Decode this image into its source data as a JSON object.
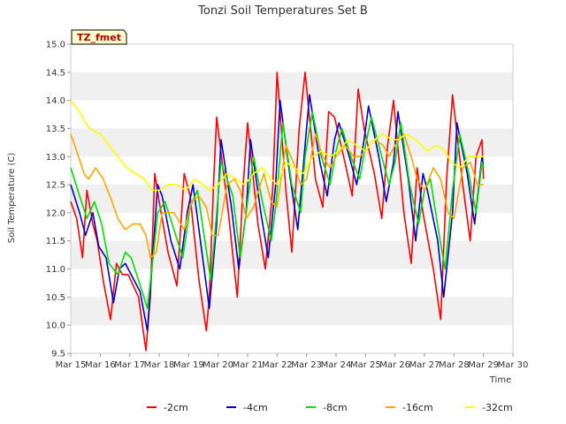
{
  "chart_data": {
    "type": "line",
    "title": "Tonzi Soil Temperatures Set B",
    "xlabel": "Time",
    "ylabel": "Soil Temperature (C)",
    "badge": "TZ_fmet",
    "xlim": [
      15,
      30
    ],
    "ylim": [
      9.5,
      15.0
    ],
    "x_ticks": [
      15,
      16,
      17,
      18,
      19,
      20,
      21,
      22,
      23,
      24,
      25,
      26,
      27,
      28,
      29,
      30
    ],
    "x_tick_labels": [
      "Mar 15",
      "Mar 16",
      "Mar 17",
      "Mar 18",
      "Mar 19",
      "Mar 20",
      "Mar 21",
      "Mar 22",
      "Mar 23",
      "Mar 24",
      "Mar 25",
      "Mar 26",
      "Mar 27",
      "Mar 28",
      "Mar 29",
      "Mar 30"
    ],
    "y_ticks": [
      9.5,
      10.0,
      10.5,
      11.0,
      11.5,
      12.0,
      12.5,
      13.0,
      13.5,
      14.0,
      14.5,
      15.0
    ],
    "y_tick_labels": [
      "9.5",
      "10.0",
      "10.5",
      "11.0",
      "11.5",
      "12.0",
      "12.5",
      "13.0",
      "13.5",
      "14.0",
      "14.5",
      "15.0"
    ],
    "grid": "horizontal bands",
    "legend_position": "bottom",
    "series": [
      {
        "name": "-2cm",
        "color": "#ff0000",
        "x": [
          15.0,
          15.2,
          15.4,
          15.55,
          15.75,
          15.9,
          16.1,
          16.35,
          16.55,
          16.75,
          16.95,
          17.3,
          17.55,
          17.7,
          17.85,
          18.0,
          18.3,
          18.6,
          18.85,
          19.05,
          19.35,
          19.6,
          19.7,
          19.85,
          19.95,
          20.35,
          20.65,
          20.85,
          21.0,
          21.35,
          21.6,
          21.85,
          22.0,
          22.3,
          22.5,
          22.75,
          22.95,
          23.3,
          23.55,
          23.75,
          23.95,
          24.3,
          24.55,
          24.75,
          24.95,
          25.3,
          25.55,
          25.75,
          25.95,
          26.3,
          26.55,
          26.75,
          26.95,
          27.3,
          27.55,
          27.75,
          27.95,
          28.3,
          28.55,
          28.75,
          28.95,
          29.0
        ],
        "y": [
          12.2,
          11.9,
          11.2,
          12.4,
          11.8,
          11.5,
          10.8,
          10.1,
          11.1,
          10.9,
          10.9,
          10.5,
          9.55,
          10.5,
          12.7,
          12.2,
          11.3,
          10.7,
          12.7,
          12.3,
          10.8,
          9.9,
          10.5,
          12.6,
          13.7,
          12.0,
          10.5,
          12.5,
          13.6,
          11.8,
          11.0,
          12.4,
          14.5,
          12.4,
          11.3,
          13.5,
          14.5,
          12.6,
          12.1,
          13.8,
          13.7,
          12.9,
          12.3,
          14.2,
          13.5,
          12.7,
          11.9,
          13.2,
          14.0,
          12.0,
          11.1,
          12.8,
          12.0,
          11.0,
          10.1,
          12.6,
          14.1,
          12.5,
          11.5,
          13.0,
          13.3,
          12.6
        ]
      },
      {
        "name": "-4cm",
        "color": "#0000cc",
        "x": [
          15.0,
          15.3,
          15.5,
          15.75,
          15.95,
          16.2,
          16.45,
          16.65,
          16.85,
          17.05,
          17.35,
          17.6,
          17.75,
          17.95,
          18.1,
          18.4,
          18.7,
          18.95,
          19.15,
          19.45,
          19.7,
          19.95,
          20.1,
          20.45,
          20.7,
          20.95,
          21.1,
          21.45,
          21.7,
          21.95,
          22.1,
          22.45,
          22.7,
          22.95,
          23.1,
          23.45,
          23.7,
          23.95,
          24.1,
          24.45,
          24.7,
          24.95,
          25.1,
          25.45,
          25.7,
          25.95,
          26.1,
          26.45,
          26.7,
          26.95,
          27.1,
          27.45,
          27.65,
          27.95,
          28.1,
          28.45,
          28.7,
          28.95,
          29.0
        ],
        "y": [
          12.5,
          12.0,
          11.6,
          12.0,
          11.4,
          11.2,
          10.4,
          11.0,
          11.1,
          10.9,
          10.6,
          9.9,
          11.0,
          12.5,
          12.3,
          11.5,
          11.0,
          12.0,
          12.5,
          11.3,
          10.3,
          11.8,
          13.3,
          12.1,
          11.0,
          12.0,
          13.3,
          12.0,
          11.2,
          12.5,
          14.0,
          12.6,
          11.7,
          13.2,
          14.1,
          12.9,
          12.3,
          13.3,
          13.6,
          13.0,
          12.5,
          13.3,
          13.9,
          13.0,
          12.2,
          12.9,
          13.8,
          12.6,
          11.5,
          12.7,
          12.4,
          11.5,
          10.5,
          12.0,
          13.6,
          12.7,
          11.8,
          13.0,
          12.8
        ]
      },
      {
        "name": "-8cm",
        "color": "#00dd00",
        "x": [
          15.0,
          15.3,
          15.55,
          15.8,
          16.05,
          16.3,
          16.6,
          16.85,
          17.05,
          17.3,
          17.6,
          17.75,
          17.95,
          18.2,
          18.5,
          18.8,
          19.05,
          19.3,
          19.55,
          19.75,
          20.1,
          20.5,
          20.75,
          20.95,
          21.2,
          21.5,
          21.8,
          21.95,
          22.2,
          22.5,
          22.8,
          22.95,
          23.2,
          23.5,
          23.8,
          24.0,
          24.2,
          24.5,
          24.8,
          25.0,
          25.2,
          25.5,
          25.8,
          26.0,
          26.2,
          26.5,
          26.8,
          27.0,
          27.2,
          27.5,
          27.7,
          27.95,
          28.2,
          28.5,
          28.75,
          28.95,
          29.0
        ],
        "y": [
          12.8,
          12.3,
          11.9,
          12.2,
          11.8,
          11.1,
          10.9,
          11.3,
          11.2,
          10.8,
          10.3,
          11.0,
          12.0,
          12.2,
          11.7,
          11.2,
          12.1,
          12.4,
          11.5,
          10.8,
          12.9,
          12.3,
          11.2,
          12.0,
          13.0,
          12.2,
          11.5,
          12.1,
          13.6,
          12.5,
          12.0,
          13.0,
          13.8,
          13.0,
          12.5,
          13.1,
          13.5,
          13.0,
          12.6,
          13.2,
          13.7,
          13.1,
          12.5,
          12.9,
          13.6,
          12.5,
          11.8,
          12.4,
          12.6,
          11.6,
          11.0,
          12.4,
          13.4,
          12.7,
          12.0,
          12.9,
          12.8
        ]
      },
      {
        "name": "-16cm",
        "color": "#ffa500",
        "x": [
          15.0,
          15.2,
          15.45,
          15.6,
          15.85,
          16.1,
          16.4,
          16.6,
          16.85,
          17.1,
          17.35,
          17.55,
          17.7,
          17.9,
          18.1,
          18.5,
          18.85,
          19.1,
          19.35,
          19.6,
          19.8,
          20.0,
          20.3,
          20.55,
          20.75,
          20.95,
          21.2,
          21.55,
          21.8,
          22.0,
          22.3,
          22.55,
          22.8,
          23.0,
          23.3,
          23.55,
          23.8,
          24.0,
          24.3,
          24.6,
          24.8,
          25.0,
          25.3,
          25.6,
          25.8,
          26.0,
          26.3,
          26.55,
          26.75,
          27.0,
          27.3,
          27.55,
          27.8,
          28.0,
          28.3,
          28.55,
          28.8,
          29.0
        ],
        "y": [
          13.4,
          13.1,
          12.7,
          12.6,
          12.8,
          12.6,
          12.2,
          11.9,
          11.7,
          11.8,
          11.8,
          11.6,
          11.2,
          11.3,
          12.0,
          12.0,
          11.7,
          12.2,
          12.3,
          12.1,
          11.6,
          11.6,
          12.5,
          12.6,
          12.4,
          11.9,
          12.1,
          12.7,
          12.2,
          12.1,
          13.2,
          12.9,
          12.5,
          12.6,
          13.4,
          13.0,
          12.8,
          13.0,
          13.2,
          13.0,
          13.0,
          13.1,
          13.3,
          13.2,
          13.0,
          13.2,
          13.4,
          13.0,
          12.6,
          12.4,
          12.8,
          12.6,
          12.0,
          11.9,
          12.8,
          12.9,
          12.5,
          12.5
        ]
      },
      {
        "name": "-32cm",
        "color": "#ffff00",
        "x": [
          15.0,
          15.3,
          15.5,
          15.65,
          16.0,
          16.3,
          16.6,
          16.9,
          17.2,
          17.5,
          17.75,
          18.0,
          18.3,
          18.6,
          18.9,
          19.2,
          19.5,
          19.7,
          20.0,
          20.3,
          20.6,
          20.9,
          21.2,
          21.5,
          21.8,
          22.0,
          22.3,
          22.6,
          22.9,
          23.2,
          23.5,
          23.8,
          24.1,
          24.4,
          24.7,
          25.0,
          25.3,
          25.6,
          25.9,
          26.1,
          26.4,
          26.7,
          26.9,
          27.1,
          27.4,
          27.7,
          27.9,
          28.2,
          28.5,
          28.8,
          29.0
        ],
        "y": [
          14.0,
          13.8,
          13.6,
          13.5,
          13.4,
          13.2,
          13.0,
          12.8,
          12.7,
          12.6,
          12.4,
          12.4,
          12.5,
          12.5,
          12.4,
          12.6,
          12.5,
          12.4,
          12.5,
          12.7,
          12.6,
          12.5,
          12.7,
          12.8,
          12.6,
          12.5,
          12.9,
          12.8,
          12.7,
          13.0,
          13.1,
          13.0,
          13.1,
          13.3,
          13.2,
          13.1,
          13.3,
          13.4,
          13.3,
          13.3,
          13.4,
          13.3,
          13.2,
          13.1,
          13.2,
          13.1,
          12.9,
          12.8,
          13.0,
          13.0,
          13.0
        ]
      }
    ]
  }
}
